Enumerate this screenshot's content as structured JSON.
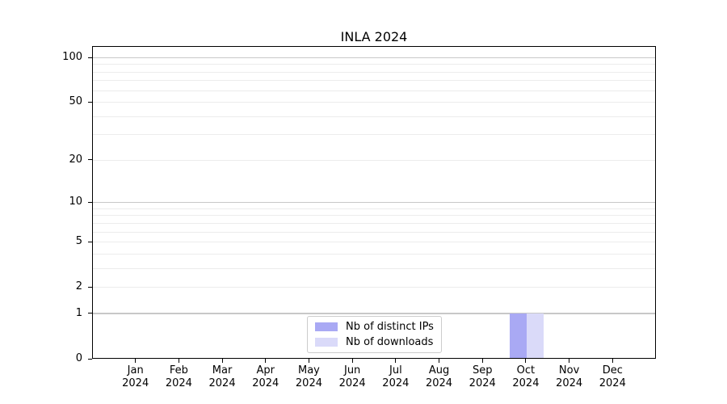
{
  "chart_data": {
    "type": "bar",
    "title": "INLA 2024",
    "categories": [
      "Jan 2024",
      "Feb 2024",
      "Mar 2024",
      "Apr 2024",
      "May 2024",
      "Jun 2024",
      "Jul 2024",
      "Aug 2024",
      "Sep 2024",
      "Oct 2024",
      "Nov 2024",
      "Dec 2024"
    ],
    "x_months": [
      "Jan",
      "Feb",
      "Mar",
      "Apr",
      "May",
      "Jun",
      "Jul",
      "Aug",
      "Sep",
      "Oct",
      "Nov",
      "Dec"
    ],
    "x_year": "2024",
    "series": [
      {
        "name": "Nb of distinct IPs",
        "color": "#a9a9f4",
        "values": [
          0,
          0,
          0,
          0,
          0,
          0,
          0,
          0,
          0,
          1,
          0,
          0
        ]
      },
      {
        "name": "Nb of downloads",
        "color": "#dadaf9",
        "values": [
          0,
          0,
          0,
          0,
          0,
          0,
          0,
          0,
          0,
          1,
          0,
          0
        ]
      }
    ],
    "yscale": "log1p",
    "ylim": [
      0,
      120
    ],
    "ytick_labels": [
      0,
      1,
      2,
      5,
      10,
      20,
      50,
      100
    ],
    "major_gridlines": [
      1,
      10,
      100
    ],
    "minor_gridlines": [
      2,
      3,
      4,
      5,
      6,
      7,
      8,
      9,
      20,
      30,
      40,
      50,
      60,
      70,
      80,
      90
    ],
    "grid_color_major": "#c8c8c8",
    "grid_color_minor": "#ececec",
    "axis_color": "#000000",
    "legend_position": "bottom-center",
    "grid": "on"
  }
}
